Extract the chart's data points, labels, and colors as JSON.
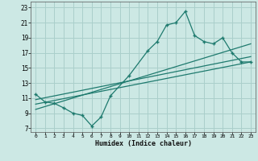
{
  "xlabel": "Humidex (Indice chaleur)",
  "bg_color": "#cce8e4",
  "grid_color": "#aacfcb",
  "line_color": "#1e7a6e",
  "xlim": [
    -0.5,
    23.5
  ],
  "ylim": [
    6.5,
    23.8
  ],
  "xticks": [
    0,
    1,
    2,
    3,
    4,
    5,
    6,
    7,
    8,
    9,
    10,
    11,
    12,
    13,
    14,
    15,
    16,
    17,
    18,
    19,
    20,
    21,
    22,
    23
  ],
  "yticks": [
    7,
    9,
    11,
    13,
    15,
    17,
    19,
    21,
    23
  ],
  "main_x": [
    0,
    1,
    2,
    3,
    4,
    5,
    6,
    7,
    8,
    10,
    12,
    13,
    14,
    15,
    16,
    17,
    18,
    19,
    20,
    21,
    22,
    23
  ],
  "main_y": [
    11.5,
    10.5,
    10.3,
    9.7,
    9.0,
    8.7,
    7.3,
    8.5,
    11.3,
    14.0,
    17.3,
    18.5,
    20.7,
    21.0,
    22.5,
    19.3,
    18.5,
    18.2,
    19.0,
    17.0,
    15.8,
    15.8
  ],
  "trend1_x": [
    0,
    23
  ],
  "trend1_y": [
    9.5,
    18.2
  ],
  "trend2_x": [
    0,
    23
  ],
  "trend2_y": [
    10.2,
    15.8
  ],
  "trend3_x": [
    0,
    23
  ],
  "trend3_y": [
    10.8,
    16.5
  ]
}
